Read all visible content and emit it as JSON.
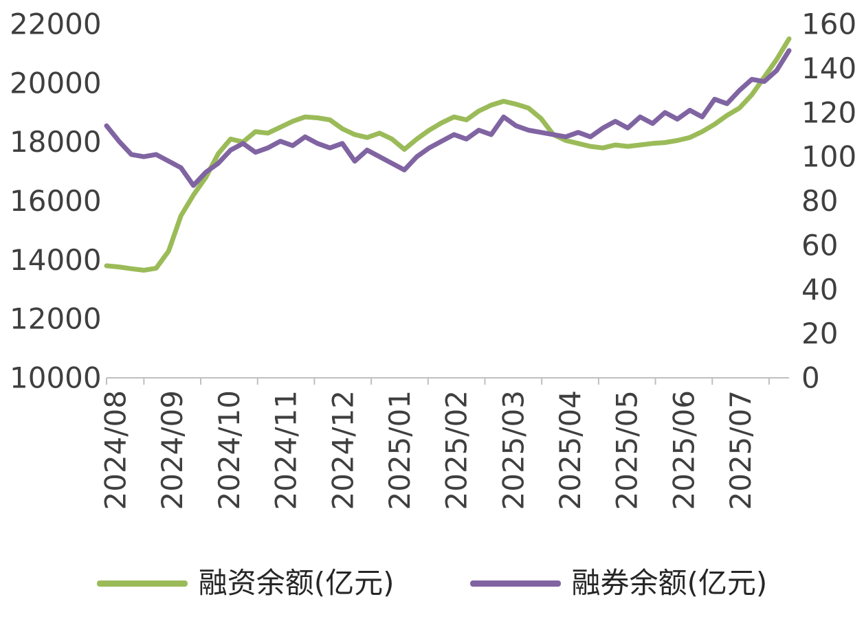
{
  "chart_data": {
    "type": "line",
    "title": "",
    "grid": false,
    "legend_position": "bottom",
    "x_tick_labels": [
      "2024/08",
      "2024/09",
      "2024/10",
      "2024/11",
      "2024/12",
      "2025/01",
      "2025/02",
      "2025/03",
      "2025/04",
      "2025/05",
      "2025/06",
      "2025/07"
    ],
    "left_axis": {
      "min": 10000,
      "max": 22000,
      "step": 2000,
      "ticks": [
        10000,
        12000,
        14000,
        16000,
        18000,
        20000,
        22000
      ]
    },
    "right_axis": {
      "min": 0,
      "max": 160,
      "step": 20,
      "ticks": [
        0,
        20,
        40,
        60,
        80,
        100,
        120,
        140,
        160
      ]
    },
    "series": [
      {
        "name": "融资余额(亿元)",
        "axis": "left",
        "color": "#9BBB59",
        "data_name": "financing-balance-line",
        "values": [
          13800,
          13760,
          13700,
          13650,
          13720,
          14300,
          15500,
          16200,
          16800,
          17600,
          18100,
          18000,
          18350,
          18300,
          18500,
          18700,
          18850,
          18820,
          18750,
          18450,
          18250,
          18150,
          18300,
          18100,
          17750,
          18100,
          18400,
          18650,
          18850,
          18750,
          19050,
          19250,
          19380,
          19280,
          19150,
          18800,
          18250,
          18050,
          17950,
          17850,
          17800,
          17900,
          17850,
          17900,
          17950,
          17980,
          18050,
          18150,
          18350,
          18600,
          18900,
          19150,
          19600,
          20200,
          20800,
          21500
        ]
      },
      {
        "name": "融券余额(亿元)",
        "axis": "right",
        "color": "#8064A2",
        "data_name": "securities-lending-balance-line",
        "values": [
          114,
          107,
          101,
          100,
          101,
          98,
          95,
          87,
          93,
          97,
          103,
          106,
          102,
          104,
          107,
          105,
          109,
          106,
          104,
          106,
          98,
          103,
          100,
          97,
          94,
          100,
          104,
          107,
          110,
          108,
          112,
          110,
          118,
          114,
          112,
          111,
          110,
          109,
          111,
          109,
          113,
          116,
          113,
          118,
          115,
          120,
          117,
          121,
          118,
          126,
          124,
          130,
          135,
          134,
          139,
          148
        ]
      }
    ]
  },
  "legend": {
    "items": [
      {
        "label": "融资余额(亿元)",
        "color": "#9BBB59"
      },
      {
        "label": "融券余额(亿元)",
        "color": "#8064A2"
      }
    ]
  },
  "colors": {
    "axis_text": "#3f3f3f",
    "axis_line": "#bfbfbf",
    "background": "#ffffff",
    "financing_green": "#9BBB59",
    "lending_purple": "#8064A2"
  }
}
